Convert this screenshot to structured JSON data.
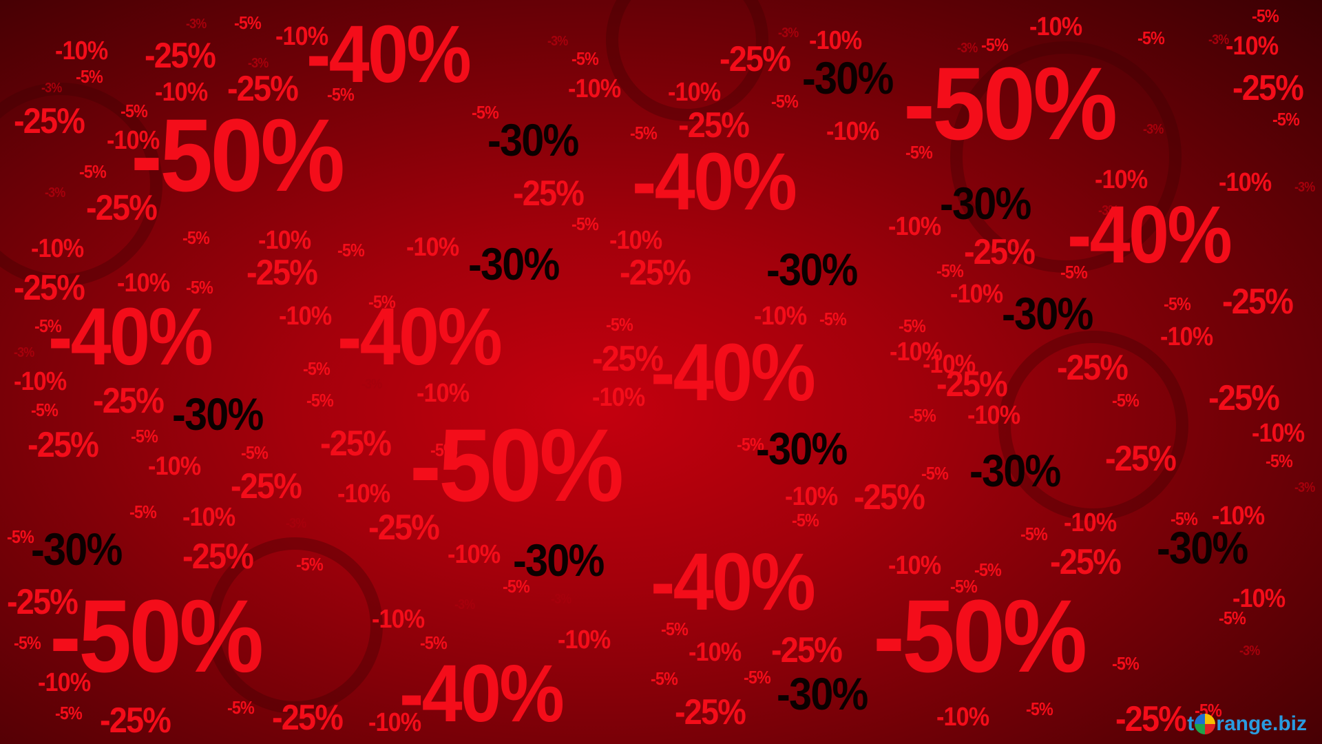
{
  "labels": {
    "m50": "-50%",
    "m40": "-40%",
    "m30": "-30%",
    "m25": "-25%",
    "m10": "-10%",
    "m5": "-5%",
    "m3": "-3%"
  },
  "colors": {
    "background_center": "#c4000e",
    "background_edge": "#3a0003",
    "red_text": "#f40d1a",
    "black_text": "#0b0000",
    "watermark": "#2a9be0"
  },
  "watermark": {
    "prefix": "t",
    "suffix": "range.biz",
    "icon": "orange-ball-icon"
  }
}
